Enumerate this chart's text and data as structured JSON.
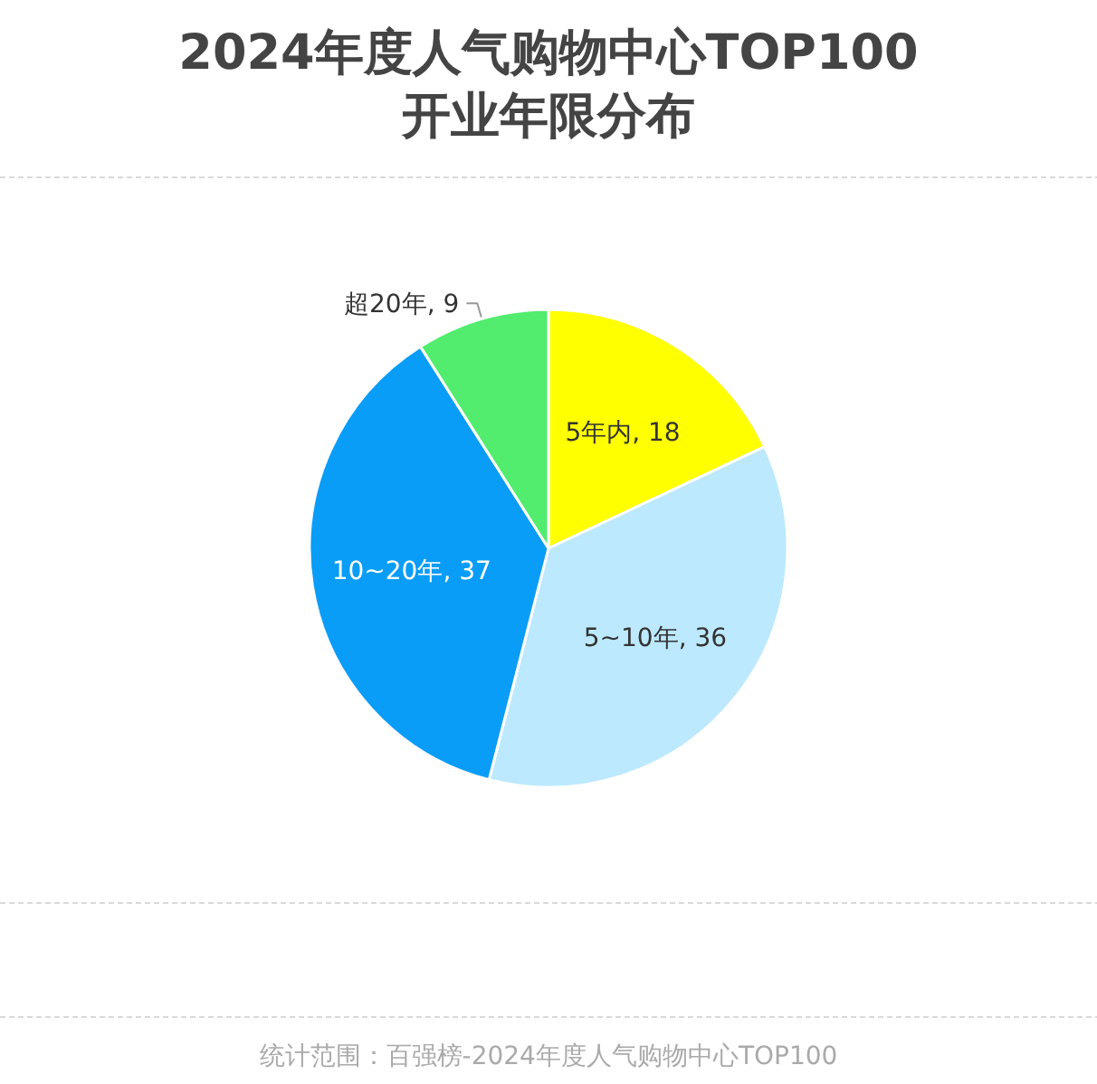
{
  "chart_data": {
    "type": "pie",
    "title": "2024年度人气购物中心TOP100\n开业年限分布",
    "categories": [
      "5年内",
      "5~10年",
      "10~20年",
      "超20年"
    ],
    "values": [
      18,
      36,
      37,
      9
    ],
    "value_labels": [
      ", 18",
      ", 36",
      ", 37",
      ", 9"
    ],
    "colors": [
      "#ffff00",
      "#bde9ff",
      "#0a9df7",
      "#52ec6e"
    ],
    "annotations": [
      "统计范围：百强榜-2024年度人气购物中心TOP100"
    ]
  }
}
